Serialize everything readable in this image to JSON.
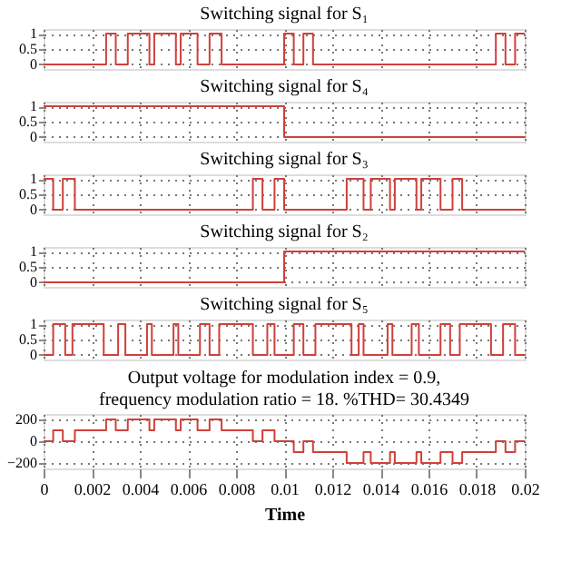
{
  "chart_data": [
    {
      "type": "step",
      "title": "Switching signal for S₁",
      "color": "#d0403a",
      "x": [
        0,
        0.0026,
        0.003,
        0.0035,
        0.0044,
        0.0046,
        0.0055,
        0.0057,
        0.0064,
        0.0069,
        0.0074,
        0.01,
        0.0104,
        0.0108,
        0.0112,
        0.0188,
        0.0192,
        0.0196,
        0.02
      ],
      "values": [
        0,
        1,
        0,
        1,
        0,
        1,
        0,
        1,
        0,
        1,
        0,
        1,
        0,
        1,
        0,
        1,
        0,
        1,
        1
      ],
      "xlim": [
        0,
        0.02
      ],
      "xticks": [
        0,
        0.002,
        0.004,
        0.006,
        0.008,
        0.01,
        0.012,
        0.014,
        0.016,
        0.018,
        0.02
      ],
      "ylim": [
        -0.15,
        1.15
      ],
      "yticks": [
        0,
        0.5,
        1
      ],
      "grid": true,
      "tick_labels": "y"
    },
    {
      "type": "step",
      "title": "Switching signal for S₄",
      "color": "#d0403a",
      "x": [
        0,
        0.01,
        0.02
      ],
      "values": [
        1,
        0,
        0
      ],
      "xlim": [
        0,
        0.02
      ],
      "xticks": [
        0,
        0.002,
        0.004,
        0.006,
        0.008,
        0.01,
        0.012,
        0.014,
        0.016,
        0.018,
        0.02
      ],
      "ylim": [
        -0.15,
        1.15
      ],
      "yticks": [
        0,
        0.5,
        1
      ],
      "grid": true,
      "tick_labels": "y"
    },
    {
      "type": "step",
      "title": "Switching signal for S₃",
      "color": "#d0403a",
      "x": [
        0,
        0.0004,
        0.0008,
        0.0013,
        0.0087,
        0.0091,
        0.0096,
        0.01,
        0.0126,
        0.0133,
        0.0136,
        0.0144,
        0.0146,
        0.0155,
        0.0157,
        0.0165,
        0.017,
        0.0174,
        0.02
      ],
      "values": [
        1,
        0,
        1,
        0,
        1,
        0,
        1,
        0,
        1,
        0,
        1,
        0,
        1,
        0,
        1,
        0,
        1,
        0,
        0
      ],
      "xlim": [
        0,
        0.02
      ],
      "xticks": [
        0,
        0.002,
        0.004,
        0.006,
        0.008,
        0.01,
        0.012,
        0.014,
        0.016,
        0.018,
        0.02
      ],
      "ylim": [
        -0.15,
        1.15
      ],
      "yticks": [
        0,
        0.5,
        1
      ],
      "grid": true,
      "tick_labels": "y"
    },
    {
      "type": "step",
      "title": "Switching signal for S₂",
      "color": "#d0403a",
      "x": [
        0,
        0.01,
        0.02
      ],
      "values": [
        0,
        1,
        1
      ],
      "xlim": [
        0,
        0.02
      ],
      "xticks": [
        0,
        0.002,
        0.004,
        0.006,
        0.008,
        0.01,
        0.012,
        0.014,
        0.016,
        0.018,
        0.02
      ],
      "ylim": [
        -0.15,
        1.15
      ],
      "yticks": [
        0,
        0.5,
        1
      ],
      "grid": true,
      "tick_labels": "y"
    },
    {
      "type": "step",
      "title": "Switching signal for S₅",
      "color": "#d0403a",
      "x": [
        0,
        0.0004,
        0.0009,
        0.0012,
        0.0025,
        0.0031,
        0.0034,
        0.0043,
        0.0045,
        0.0054,
        0.0056,
        0.0065,
        0.0069,
        0.0073,
        0.0087,
        0.0093,
        0.0096,
        0.0104,
        0.0108,
        0.0113,
        0.0128,
        0.0131,
        0.0133,
        0.0143,
        0.0145,
        0.0153,
        0.0156,
        0.0165,
        0.0169,
        0.0173,
        0.0186,
        0.0191,
        0.0196,
        0.02
      ],
      "values": [
        0,
        1,
        0,
        1,
        0,
        1,
        0,
        1,
        0,
        1,
        0,
        1,
        0,
        1,
        0,
        1,
        0,
        1,
        0,
        1,
        0,
        1,
        0,
        1,
        0,
        1,
        0,
        1,
        0,
        1,
        0,
        1,
        0,
        0
      ],
      "xlim": [
        0,
        0.02
      ],
      "xticks": [
        0,
        0.002,
        0.004,
        0.006,
        0.008,
        0.01,
        0.012,
        0.014,
        0.016,
        0.018,
        0.02
      ],
      "ylim": [
        -0.15,
        1.15
      ],
      "yticks": [
        0,
        0.5,
        1
      ],
      "grid": true,
      "tick_labels": "y"
    },
    {
      "type": "step",
      "title": "Output voltage for modulation index = 0.9, frequency modulation ratio = 18. %THD= 30.4349",
      "xlabel": "Time",
      "color": "#d0403a",
      "x": [
        0,
        0.0004,
        0.0008,
        0.0013,
        0.0026,
        0.003,
        0.0035,
        0.0044,
        0.0046,
        0.0055,
        0.0057,
        0.0064,
        0.0069,
        0.0074,
        0.0087,
        0.0091,
        0.0096,
        0.01,
        0.0104,
        0.0108,
        0.0112,
        0.0126,
        0.0133,
        0.0136,
        0.0144,
        0.0146,
        0.0155,
        0.0157,
        0.0165,
        0.017,
        0.0174,
        0.0188,
        0.0192,
        0.0196,
        0.02
      ],
      "values": [
        0,
        100,
        0,
        100,
        200,
        100,
        200,
        100,
        200,
        100,
        200,
        100,
        200,
        100,
        0,
        100,
        0,
        0,
        -100,
        0,
        -100,
        -200,
        -100,
        -200,
        -100,
        -200,
        -100,
        -200,
        -100,
        -200,
        -100,
        0,
        -100,
        0,
        0
      ],
      "xlim": [
        0,
        0.02
      ],
      "xticks": [
        0,
        0.002,
        0.004,
        0.006,
        0.008,
        0.01,
        0.012,
        0.014,
        0.016,
        0.018,
        0.02
      ],
      "ylim": [
        -250,
        250
      ],
      "yticks": [
        -200,
        0,
        200
      ],
      "grid": true
    }
  ]
}
